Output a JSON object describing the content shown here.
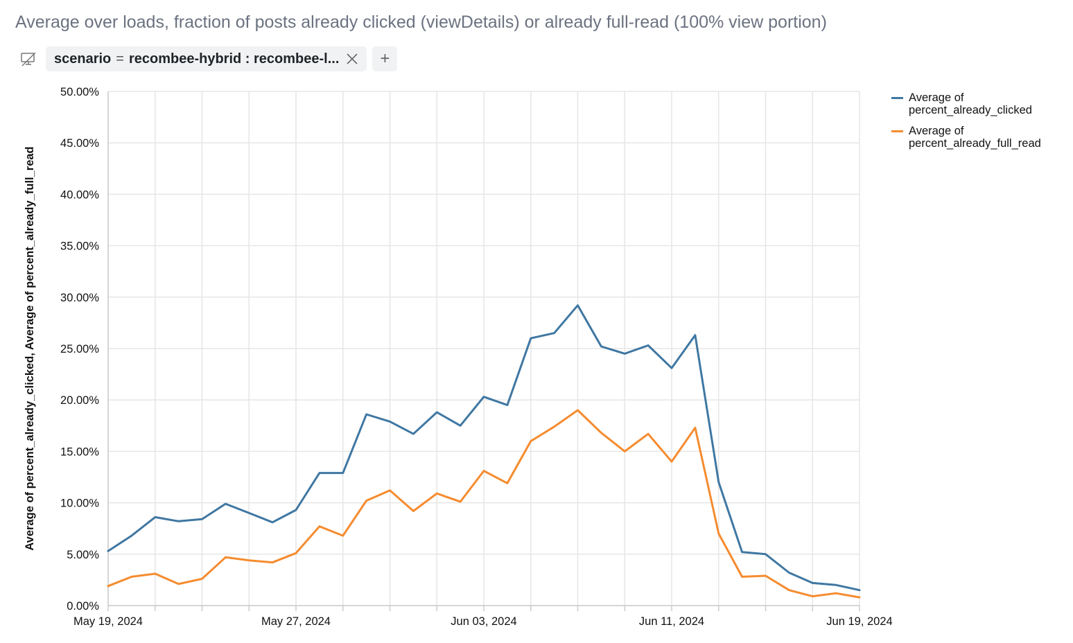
{
  "title": "Average over loads, fraction of posts already clicked (viewDetails) or already full-read (100% view portion)",
  "filter": {
    "toggle_icon": "filter-off-icon",
    "field": "scenario",
    "operator": "=",
    "value": "recombee-hybrid : recombee-l...",
    "remove_icon": "close-icon",
    "add_label": "+"
  },
  "chart_data": {
    "type": "line",
    "title": "",
    "xlabel": "",
    "ylabel": "Average of percent_already_clicked, Average of percent_already_full_read",
    "x_tick_labels": [
      "May 19, 2024",
      "May 27, 2024",
      "Jun 03, 2024",
      "Jun 11, 2024",
      "Jun 19, 2024"
    ],
    "y_tick_labels": [
      "0.00%",
      "5.00%",
      "10.00%",
      "15.00%",
      "20.00%",
      "25.00%",
      "30.00%",
      "35.00%",
      "40.00%",
      "45.00%",
      "50.00%"
    ],
    "ylim": [
      0,
      50
    ],
    "grid": true,
    "legend_position": "right",
    "x": [
      "2024-05-19",
      "2024-05-20",
      "2024-05-21",
      "2024-05-22",
      "2024-05-23",
      "2024-05-24",
      "2024-05-25",
      "2024-05-26",
      "2024-05-27",
      "2024-05-28",
      "2024-05-29",
      "2024-05-30",
      "2024-05-31",
      "2024-06-01",
      "2024-06-02",
      "2024-06-03",
      "2024-06-04",
      "2024-06-05",
      "2024-06-06",
      "2024-06-07",
      "2024-06-08",
      "2024-06-09",
      "2024-06-10",
      "2024-06-11",
      "2024-06-12",
      "2024-06-13",
      "2024-06-14",
      "2024-06-15",
      "2024-06-16",
      "2024-06-17",
      "2024-06-18",
      "2024-06-19",
      "2024-06-20"
    ],
    "series": [
      {
        "name": "Average of percent_already_clicked",
        "color": "#3f77a2",
        "values": [
          5.3,
          6.8,
          8.6,
          8.2,
          8.4,
          9.9,
          9.0,
          8.1,
          9.3,
          12.9,
          12.9,
          18.6,
          17.9,
          16.7,
          18.8,
          17.5,
          20.3,
          19.5,
          26.0,
          26.5,
          29.2,
          25.2,
          24.5,
          25.3,
          23.1,
          26.3,
          12.0,
          5.2,
          5.0,
          3.2,
          2.2,
          2.0,
          1.5
        ]
      },
      {
        "name": "Average of percent_already_full_read",
        "color": "#f58b2f",
        "values": [
          1.9,
          2.8,
          3.1,
          2.1,
          2.6,
          4.7,
          4.4,
          4.2,
          5.1,
          7.7,
          6.8,
          10.2,
          11.2,
          9.2,
          10.9,
          10.1,
          13.1,
          11.9,
          16.0,
          17.4,
          19.0,
          16.8,
          15.0,
          16.7,
          14.0,
          17.3,
          7.0,
          2.8,
          2.9,
          1.5,
          0.9,
          1.2,
          0.8
        ]
      }
    ]
  }
}
